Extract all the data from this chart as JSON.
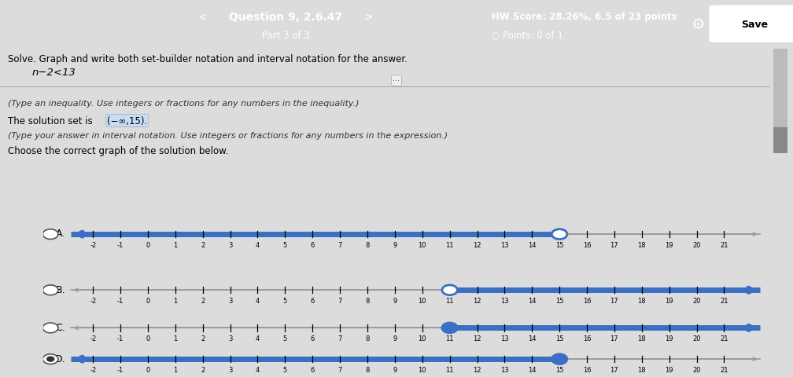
{
  "title_bar": "Question 9, 2.6.47",
  "subtitle_bar": "Part 3 of 3",
  "hw_score": "HW Score: 28.26%, 6.5 of 23 points",
  "points": "○ Points: 0 of 1",
  "problem_text": "Solve. Graph and write both set-builder notation and interval notation for the answer.",
  "equation": "n−2<13",
  "instruction1": "(Type an inequality. Use integers or fractions for any numbers in the inequality.)",
  "solution_label": "The solution set is ",
  "solution_interval": "(−∞,15).",
  "instruction2": "(Type your answer in interval notation. Use integers or fractions for any numbers in the expression.)",
  "choose_text": "Choose the correct graph of the solution below.",
  "tick_vals": [
    -2,
    -1,
    0,
    1,
    2,
    3,
    4,
    5,
    6,
    7,
    8,
    9,
    10,
    11,
    12,
    13,
    14,
    15,
    16,
    17,
    18,
    19,
    20,
    21
  ],
  "background_color": "#dcdcdc",
  "header_color": "#2e5fa3",
  "line_color_thick": "#3a6fc4",
  "line_color_thin": "#999999",
  "graphs": [
    {
      "label": "A.",
      "direction": "left",
      "value": 15,
      "open": true,
      "selected": false
    },
    {
      "label": "B.",
      "direction": "right",
      "value": 11,
      "open": true,
      "selected": false
    },
    {
      "label": "C.",
      "direction": "right",
      "value": 11,
      "open": false,
      "selected": false
    },
    {
      "label": "D.",
      "direction": "left",
      "value": 15,
      "open": false,
      "selected": true
    }
  ]
}
